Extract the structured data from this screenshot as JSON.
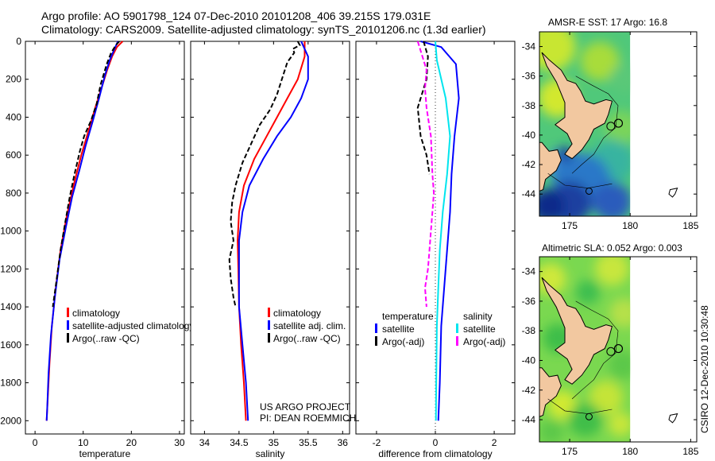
{
  "header": {
    "line1": "Argo profile: AO 5901798_124 07-Dec-2010 20101208_406 39.215S 179.031E",
    "line2": "Climatology: CARS2009. Satellite-adjusted climatology: synTS_20101206.nc (1.3d earlier)"
  },
  "side_stamp": "CSIRO 12-Dec-2010 10:30:48",
  "chart_data": [
    {
      "id": "temperature",
      "type": "line",
      "xlabel": "temperature",
      "xlim": [
        -2,
        31
      ],
      "ylim": [
        0,
        2070
      ],
      "y_reversed": true,
      "xticks": [
        0,
        10,
        20,
        30
      ],
      "yticks": [
        0,
        200,
        400,
        600,
        800,
        1000,
        1200,
        1400,
        1600,
        1800,
        2000
      ],
      "show_ytick_labels": true,
      "legend": {
        "labels": [
          "climatology",
          "satellite-adjusted climatology",
          "Argo(..raw -QC)"
        ]
      },
      "series": [
        {
          "name": "climatology",
          "color": "#ff0000",
          "dash": "",
          "points": [
            [
              18.2,
              0
            ],
            [
              17,
              30
            ],
            [
              16,
              80
            ],
            [
              15,
              150
            ],
            [
              14,
              230
            ],
            [
              12.5,
              350
            ],
            [
              11,
              480
            ],
            [
              9.6,
              600
            ],
            [
              8,
              760
            ],
            [
              6.6,
              920
            ],
            [
              5.3,
              1100
            ],
            [
              4.3,
              1300
            ],
            [
              3.5,
              1500
            ],
            [
              3,
              1700
            ],
            [
              2.6,
              1900
            ],
            [
              2.4,
              2000
            ]
          ]
        },
        {
          "name": "satellite-adjusted climatology",
          "color": "#0000ff",
          "dash": "",
          "points": [
            [
              17.2,
              0
            ],
            [
              16.5,
              40
            ],
            [
              15.5,
              100
            ],
            [
              14.5,
              180
            ],
            [
              13.3,
              300
            ],
            [
              12,
              420
            ],
            [
              10.5,
              550
            ],
            [
              9.2,
              680
            ],
            [
              7.7,
              820
            ],
            [
              6.4,
              980
            ],
            [
              5.1,
              1150
            ],
            [
              4.1,
              1350
            ],
            [
              3.3,
              1550
            ],
            [
              2.8,
              1750
            ],
            [
              2.5,
              1950
            ],
            [
              2.4,
              2000
            ]
          ]
        },
        {
          "name": "Argo(..raw -QC)",
          "color": "#000000",
          "dash": "6,3",
          "points": [
            [
              17.5,
              0
            ],
            [
              16.8,
              20
            ],
            [
              15.8,
              60
            ],
            [
              14.9,
              120
            ],
            [
              13.6,
              230
            ],
            [
              12.8,
              330
            ],
            [
              11.6,
              420
            ],
            [
              10.2,
              500
            ],
            [
              9.3,
              580
            ],
            [
              8.2,
              700
            ],
            [
              7.2,
              820
            ],
            [
              6.3,
              950
            ],
            [
              5.3,
              1100
            ],
            [
              4.4,
              1270
            ],
            [
              3.7,
              1400
            ]
          ]
        }
      ]
    },
    {
      "id": "salinity",
      "type": "line",
      "xlabel": "salinity",
      "xlim": [
        33.8,
        36.1
      ],
      "ylim": [
        0,
        2070
      ],
      "y_reversed": true,
      "xticks": [
        34,
        34.5,
        35,
        35.5,
        36
      ],
      "yticks": [
        0,
        200,
        400,
        600,
        800,
        1000,
        1200,
        1400,
        1600,
        1800,
        2000
      ],
      "show_ytick_labels": false,
      "legend": {
        "labels": [
          "climatology",
          "satellite adj. clim.",
          "Argo(..raw -QC)"
        ]
      },
      "annotation": [
        "US ARGO PROJECT",
        "PI: DEAN ROEMMICH"
      ],
      "series": [
        {
          "name": "climatology",
          "color": "#ff0000",
          "dash": "",
          "points": [
            [
              35.45,
              0
            ],
            [
              35.45,
              80
            ],
            [
              35.35,
              200
            ],
            [
              35.2,
              300
            ],
            [
              35.05,
              400
            ],
            [
              34.9,
              500
            ],
            [
              34.72,
              620
            ],
            [
              34.57,
              760
            ],
            [
              34.5,
              900
            ],
            [
              34.48,
              1050
            ],
            [
              34.49,
              1200
            ],
            [
              34.5,
              1400
            ],
            [
              34.53,
              1600
            ],
            [
              34.57,
              1800
            ],
            [
              34.6,
              2000
            ]
          ]
        },
        {
          "name": "satellite adj. clim.",
          "color": "#0000ff",
          "dash": "",
          "points": [
            [
              35.4,
              0
            ],
            [
              35.5,
              80
            ],
            [
              35.5,
              200
            ],
            [
              35.4,
              300
            ],
            [
              35.25,
              400
            ],
            [
              35.05,
              500
            ],
            [
              34.85,
              620
            ],
            [
              34.65,
              760
            ],
            [
              34.55,
              900
            ],
            [
              34.5,
              1050
            ],
            [
              34.5,
              1200
            ],
            [
              34.5,
              1400
            ],
            [
              34.55,
              1600
            ],
            [
              34.6,
              1800
            ],
            [
              34.63,
              2000
            ]
          ]
        },
        {
          "name": "Argo(..raw -QC)",
          "color": "#000000",
          "dash": "6,3",
          "points": [
            [
              35.35,
              0
            ],
            [
              35.38,
              20
            ],
            [
              35.28,
              40
            ],
            [
              35.3,
              60
            ],
            [
              35.2,
              110
            ],
            [
              35.12,
              200
            ],
            [
              35.05,
              280
            ],
            [
              34.95,
              360
            ],
            [
              34.8,
              440
            ],
            [
              34.7,
              520
            ],
            [
              34.55,
              640
            ],
            [
              34.45,
              760
            ],
            [
              34.4,
              850
            ],
            [
              34.38,
              950
            ],
            [
              34.42,
              1050
            ],
            [
              34.36,
              1150
            ],
            [
              34.38,
              1250
            ],
            [
              34.42,
              1350
            ],
            [
              34.45,
              1400
            ]
          ]
        }
      ]
    },
    {
      "id": "difference",
      "type": "line",
      "xlabel": "difference from climatology",
      "xlim": [
        -2.7,
        2.7
      ],
      "ylim": [
        0,
        2070
      ],
      "y_reversed": true,
      "xticks": [
        -2,
        0,
        2
      ],
      "yticks": [
        0,
        200,
        400,
        600,
        800,
        1000,
        1200,
        1400,
        1600,
        1800,
        2000
      ],
      "show_ytick_labels": false,
      "zero_line": true,
      "legend": {
        "left_header": "temperature",
        "left_labels": [
          "satellite",
          "Argo(-adj)"
        ],
        "right_header": "salinity",
        "right_labels": [
          "satellite",
          "Argo(-adj)"
        ]
      },
      "series": [
        {
          "name": "temperature satellite",
          "color": "#0000ff",
          "dash": "",
          "points": [
            [
              -0.5,
              0
            ],
            [
              0.2,
              30
            ],
            [
              0.7,
              120
            ],
            [
              0.8,
              300
            ],
            [
              0.65,
              500
            ],
            [
              0.55,
              700
            ],
            [
              0.5,
              900
            ],
            [
              0.4,
              1100
            ],
            [
              0.3,
              1300
            ],
            [
              0.2,
              1500
            ],
            [
              0.15,
              1800
            ],
            [
              0.1,
              2000
            ]
          ]
        },
        {
          "name": "temperature Argo(-adj)",
          "color": "#000000",
          "dash": "6,3",
          "points": [
            [
              -0.4,
              0
            ],
            [
              -0.25,
              80
            ],
            [
              -0.3,
              200
            ],
            [
              -0.6,
              350
            ],
            [
              -0.5,
              500
            ],
            [
              -0.3,
              600
            ],
            [
              -0.2,
              700
            ]
          ]
        },
        {
          "name": "salinity satellite",
          "color": "#00e5ee",
          "dash": "",
          "points": [
            [
              0,
              0
            ],
            [
              0.05,
              100
            ],
            [
              0.35,
              300
            ],
            [
              0.5,
              500
            ],
            [
              0.4,
              700
            ],
            [
              0.25,
              900
            ],
            [
              0.15,
              1100
            ],
            [
              0.1,
              1300
            ],
            [
              0.05,
              1500
            ],
            [
              0.03,
              1800
            ],
            [
              0.02,
              2000
            ]
          ]
        },
        {
          "name": "salinity Argo(-adj)",
          "color": "#ff00ff",
          "dash": "6,3",
          "points": [
            [
              -0.6,
              0
            ],
            [
              -0.5,
              50
            ],
            [
              -0.3,
              150
            ],
            [
              -0.35,
              250
            ],
            [
              -0.3,
              350
            ],
            [
              -0.15,
              500
            ],
            [
              -0.1,
              700
            ],
            [
              -0.05,
              800
            ],
            [
              -0.1,
              900
            ],
            [
              -0.15,
              1000
            ],
            [
              -0.2,
              1100
            ],
            [
              -0.25,
              1200
            ],
            [
              -0.35,
              1300
            ],
            [
              -0.3,
              1400
            ]
          ]
        }
      ]
    },
    {
      "id": "sst_map",
      "type": "heatmap",
      "title": "AMSR-E SST: 17 Argo: 16.8",
      "xlim": [
        172.5,
        185.5
      ],
      "ylim": [
        -45.5,
        -33
      ],
      "xticks": [
        175,
        180,
        185
      ],
      "yticks": [
        -34,
        -36,
        -38,
        -40,
        -42,
        -44
      ],
      "data_extent_lon": [
        172.5,
        180
      ],
      "palette": "sst",
      "argo_marker": [
        179.03,
        -39.2
      ]
    },
    {
      "id": "sla_map",
      "type": "heatmap",
      "title": "Altimetric SLA: 0.052 Argo: 0.003",
      "xlim": [
        172.5,
        185.5
      ],
      "ylim": [
        -45.5,
        -33
      ],
      "xticks": [
        175,
        180,
        185
      ],
      "yticks": [
        -34,
        -36,
        -38,
        -40,
        -42,
        -44
      ],
      "data_extent_lon": [
        172.5,
        180
      ],
      "palette": "sla",
      "argo_marker": [
        179.03,
        -39.2
      ]
    }
  ]
}
